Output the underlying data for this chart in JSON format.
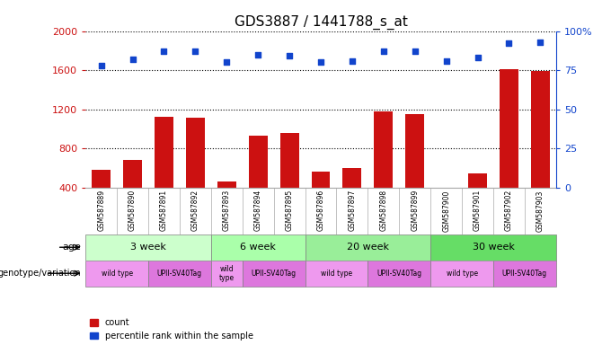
{
  "title": "GDS3887 / 1441788_s_at",
  "samples": [
    "GSM587889",
    "GSM587890",
    "GSM587891",
    "GSM587892",
    "GSM587893",
    "GSM587894",
    "GSM587895",
    "GSM587896",
    "GSM587897",
    "GSM587898",
    "GSM587899",
    "GSM587900",
    "GSM587901",
    "GSM587902",
    "GSM587903"
  ],
  "counts": [
    580,
    680,
    1120,
    1110,
    460,
    930,
    960,
    560,
    600,
    1175,
    1150,
    380,
    540,
    1610,
    1590
  ],
  "percentile_ranks": [
    78,
    82,
    87,
    87,
    80,
    85,
    84,
    80,
    81,
    87,
    87,
    81,
    83,
    92,
    93
  ],
  "ylim_left": [
    400,
    2000
  ],
  "ylim_right": [
    0,
    100
  ],
  "yticks_left": [
    400,
    800,
    1200,
    1600,
    2000
  ],
  "yticks_right": [
    0,
    25,
    50,
    75,
    100
  ],
  "bar_color": "#cc1111",
  "dot_color": "#1144cc",
  "age_groups": [
    {
      "label": "3 week",
      "start": 0,
      "end": 4,
      "color": "#ccffcc"
    },
    {
      "label": "6 week",
      "start": 4,
      "end": 7,
      "color": "#aaffaa"
    },
    {
      "label": "20 week",
      "start": 7,
      "end": 11,
      "color": "#99ee99"
    },
    {
      "label": "30 week",
      "start": 11,
      "end": 15,
      "color": "#66dd66"
    }
  ],
  "genotype_groups": [
    {
      "label": "wild type",
      "start": 0,
      "end": 2,
      "color": "#ee99ee"
    },
    {
      "label": "UPII-SV40Tag",
      "start": 2,
      "end": 4,
      "color": "#dd77dd"
    },
    {
      "label": "wild\ntype",
      "start": 4,
      "end": 5,
      "color": "#ee99ee"
    },
    {
      "label": "UPII-SV40Tag",
      "start": 5,
      "end": 7,
      "color": "#dd77dd"
    },
    {
      "label": "wild type",
      "start": 7,
      "end": 9,
      "color": "#ee99ee"
    },
    {
      "label": "UPII-SV40Tag",
      "start": 9,
      "end": 11,
      "color": "#dd77dd"
    },
    {
      "label": "wild type",
      "start": 11,
      "end": 13,
      "color": "#ee99ee"
    },
    {
      "label": "UPII-SV40Tag",
      "start": 13,
      "end": 15,
      "color": "#dd77dd"
    }
  ],
  "age_label": "age",
  "genotype_label": "genotype/variation",
  "legend_count": "count",
  "legend_percentile": "percentile rank within the sample"
}
